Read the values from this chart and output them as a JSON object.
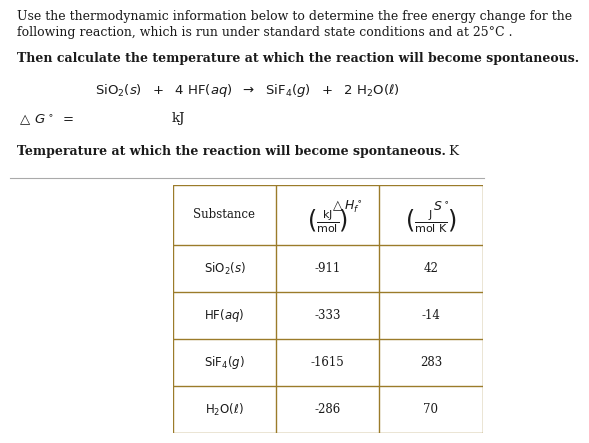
{
  "title_line1": "Use the thermodynamic information below to determine the free energy change for the",
  "title_line2": "following reaction, which is run under standard state conditions and at 25°C .",
  "line3": "Then calculate the temperature at which the reaction will become spontaneous.",
  "reaction_latex": "$\\mathrm{SiO_2}(s)\\ +\\ 4\\ \\mathrm{HF}(aq)\\ \\rightarrow\\ \\mathrm{SiF_4}(g)\\ +\\ 2\\ \\mathrm{H_2O}(\\ell)$",
  "delta_g_label": "$\\triangle G^\\circ =$",
  "delta_g_unit": "kJ",
  "temp_label": "Temperature at which the reaction will become spontaneous.",
  "temp_unit": "K",
  "table_dH": [
    "-911",
    "-333",
    "-1615",
    "-286"
  ],
  "table_S": [
    "42",
    "-14",
    "283",
    "70"
  ],
  "background_color": "#ffffff",
  "text_color": "#1a1a1a",
  "table_border_color": "#9B7B2A",
  "separator_color": "#aaaaaa"
}
